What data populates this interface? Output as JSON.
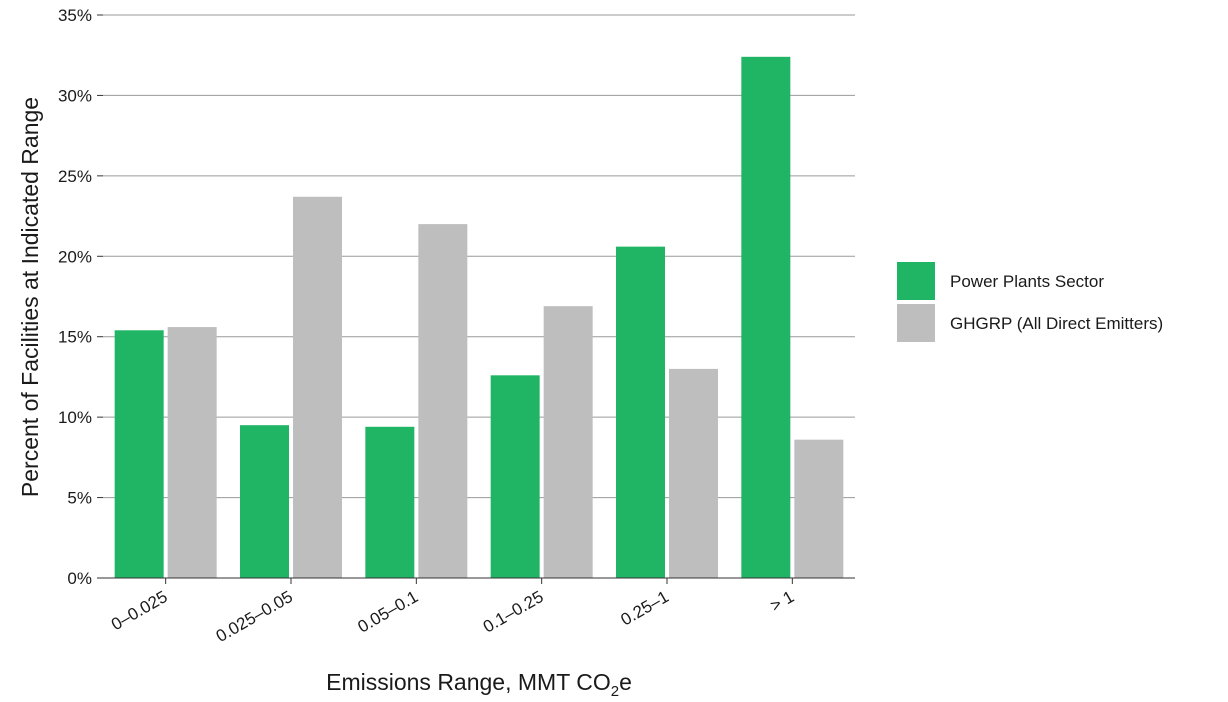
{
  "chart_data": {
    "type": "bar",
    "categories": [
      "0–0.025",
      "0.025–0.05",
      "0.05–0.1",
      "0.1–0.25",
      "0.25–1",
      "> 1"
    ],
    "series": [
      {
        "name": "Power Plants Sector",
        "color": "#1fb564",
        "values": [
          15.4,
          9.5,
          9.4,
          12.6,
          20.6,
          32.4
        ]
      },
      {
        "name": "GHGRP (All Direct Emitters)",
        "color": "#bebebe",
        "values": [
          15.6,
          23.7,
          22.0,
          16.9,
          13.0,
          8.6
        ]
      }
    ],
    "ylabel": "Percent of Facilities at Indicated Range",
    "xlabel": {
      "prefix": "Emissions Range, MMT CO",
      "subscript": "2",
      "suffix": "e"
    },
    "ylim": [
      0,
      35
    ],
    "yticks": [
      0,
      5,
      10,
      15,
      20,
      25,
      30,
      35
    ],
    "ytick_labels": [
      "0%",
      "5%",
      "10%",
      "15%",
      "20%",
      "25%",
      "30%",
      "35%"
    ],
    "grid": true,
    "legend_position": "right"
  }
}
